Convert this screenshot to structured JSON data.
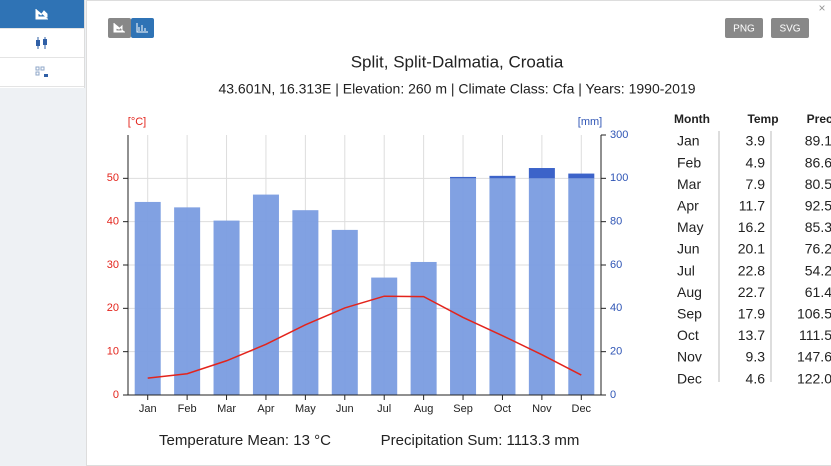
{
  "close_label": "×",
  "export_buttons": [
    "PNG",
    "SVG"
  ],
  "chart_data": {
    "type": "bar",
    "title": "Split, Split-Dalmatia, Croatia",
    "subtitle": "43.601N, 16.313E | Elevation: 260 m | Climate Class: Cfa | Years: 1990-2019",
    "ylabel": "[°C]",
    "y2label": "[mm]",
    "categories": [
      "Jan",
      "Feb",
      "Mar",
      "Apr",
      "May",
      "Jun",
      "Jul",
      "Aug",
      "Sep",
      "Oct",
      "Nov",
      "Dec"
    ],
    "series": [
      {
        "name": "Precip",
        "type": "bar",
        "axis": "y2",
        "color": "#7a9ce0",
        "overflow_color": "#3c63c9",
        "values": [
          89.1,
          86.6,
          80.5,
          92.5,
          85.3,
          76.2,
          54.2,
          61.4,
          106.5,
          111.5,
          147.6,
          122.0
        ]
      },
      {
        "name": "Temp",
        "type": "line",
        "color": "#e3241c",
        "values": [
          3.9,
          4.9,
          7.9,
          11.7,
          16.2,
          20.1,
          22.8,
          22.7,
          17.9,
          13.7,
          9.3,
          4.6
        ]
      }
    ],
    "ylim": [
      0,
      60
    ],
    "yticks": [
      0,
      10,
      20,
      30,
      40,
      50
    ],
    "y2lim": [
      0,
      300
    ],
    "y2ticks": [
      0,
      20,
      40,
      60,
      80,
      100,
      300
    ],
    "grid": true,
    "footer": [
      "Temperature Mean: 13 °C",
      "Precipitation Sum: 1113.3 mm"
    ]
  },
  "table": {
    "header": [
      "Month",
      "Temp",
      "Precip"
    ],
    "rows": [
      [
        "Jan",
        "3.9",
        "89.1"
      ],
      [
        "Feb",
        "4.9",
        "86.6"
      ],
      [
        "Mar",
        "7.9",
        "80.5"
      ],
      [
        "Apr",
        "11.7",
        "92.5"
      ],
      [
        "May",
        "16.2",
        "85.3"
      ],
      [
        "Jun",
        "20.1",
        "76.2"
      ],
      [
        "Jul",
        "22.8",
        "54.2"
      ],
      [
        "Aug",
        "22.7",
        "61.4"
      ],
      [
        "Sep",
        "17.9",
        "106.5"
      ],
      [
        "Oct",
        "13.7",
        "111.5"
      ],
      [
        "Nov",
        "9.3",
        "147.6"
      ],
      [
        "Dec",
        "4.6",
        "122.0"
      ]
    ]
  }
}
